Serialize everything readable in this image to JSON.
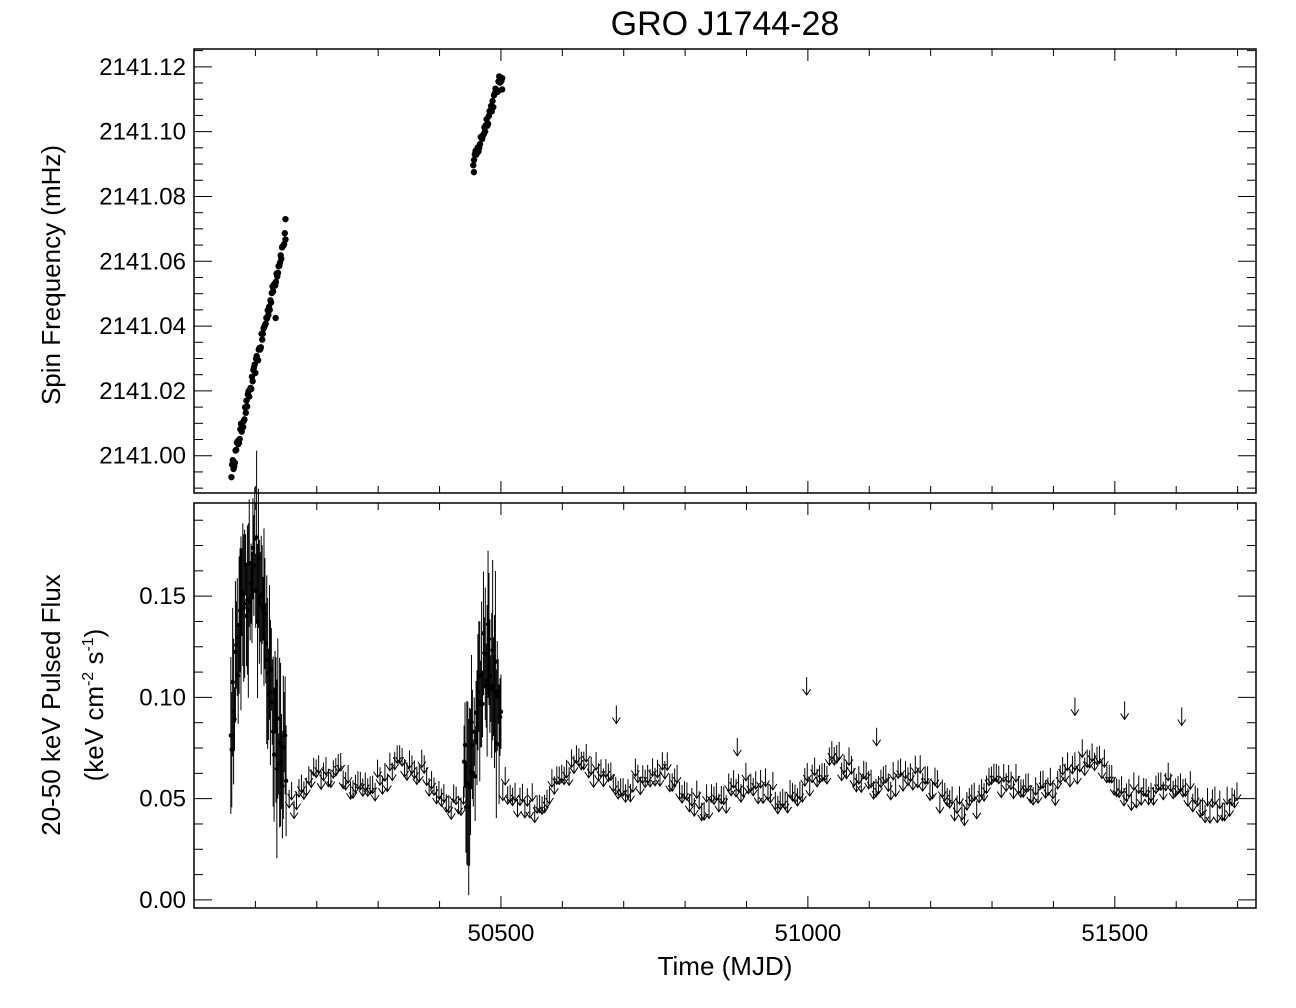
{
  "chart_data": {
    "title": "GRO J1744-28",
    "xlabel": "Time (MJD)",
    "xlim": [
      50000,
      51730
    ],
    "xticks": [
      {
        "value": 50500,
        "label": "50500"
      },
      {
        "value": 51000,
        "label": "51000"
      },
      {
        "value": 51500,
        "label": "51500"
      }
    ],
    "x_minor_step": 100,
    "panels": [
      {
        "id": "spin",
        "type": "scatter",
        "ylabel": "Spin Frequency (mHz)",
        "ylim": [
          2140.9885,
          2141.1255
        ],
        "yticks": [
          {
            "value": 2141.0,
            "label": "2141.00"
          },
          {
            "value": 2141.02,
            "label": "2141.02"
          },
          {
            "value": 2141.04,
            "label": "2141.04"
          },
          {
            "value": 2141.06,
            "label": "2141.06"
          },
          {
            "value": 2141.08,
            "label": "2141.08"
          },
          {
            "value": 2141.1,
            "label": "2141.10"
          },
          {
            "value": 2141.12,
            "label": "2141.12"
          }
        ],
        "series": [
          {
            "segments": [
              {
                "x0": 50061,
                "x1": 50149,
                "y0": 2140.995,
                "y1": 2141.068,
                "n": 80
              },
              {
                "x0": 50455,
                "x1": 50502,
                "y0": 2141.09,
                "y1": 2141.118,
                "n": 40
              }
            ],
            "outliers": [
              {
                "x": 50133,
                "y": 2141.0425
              },
              {
                "x": 50456,
                "y": 2141.0875
              },
              {
                "x": 50502,
                "y": 2141.113
              },
              {
                "x": 50149,
                "y": 2141.073
              }
            ]
          }
        ]
      },
      {
        "id": "flux",
        "type": "errorbar",
        "ylabel": "20-50 keV Pulsed Flux",
        "ylabel2": "(keV cm",
        "ylabel2_sup1": "-2",
        "ylabel2_mid": " s",
        "ylabel2_sup2": "-1",
        "ylabel2_end": ")",
        "ylim": [
          -0.004,
          0.196
        ],
        "yticks": [
          {
            "value": 0.0,
            "label": "0.00"
          },
          {
            "value": 0.05,
            "label": "0.05"
          },
          {
            "value": 0.1,
            "label": "0.10"
          },
          {
            "value": 0.15,
            "label": "0.15"
          }
        ],
        "detections": [
          {
            "x0": 50060,
            "x1": 50150,
            "peak_x": 50095,
            "peak_y": 0.165,
            "base_y": 0.07
          },
          {
            "x0": 50440,
            "x1": 50500,
            "peak_x": 50478,
            "peak_y": 0.125,
            "base_y": 0.06
          }
        ],
        "upper_limits": {
          "x0": 50155,
          "x1": 51700,
          "step": 4,
          "typical_range": [
            0.045,
            0.09
          ]
        },
        "isolated_upper_limits": [
          {
            "x": 50998,
            "y": 0.11
          },
          {
            "x": 50688,
            "y": 0.096
          },
          {
            "x": 51435,
            "y": 0.1
          },
          {
            "x": 51516,
            "y": 0.098
          },
          {
            "x": 51609,
            "y": 0.095
          },
          {
            "x": 50885,
            "y": 0.08
          },
          {
            "x": 51112,
            "y": 0.085
          }
        ]
      }
    ]
  }
}
